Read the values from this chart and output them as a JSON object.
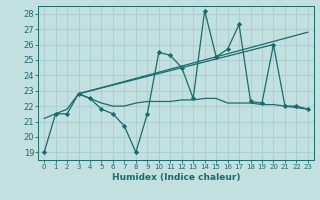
{
  "xlabel": "Humidex (Indice chaleur)",
  "bg_color": "#c2e0e0",
  "grid_color": "#aacccc",
  "line_color": "#1a6b6b",
  "xlim": [
    -0.5,
    23.5
  ],
  "ylim": [
    18.5,
    28.5
  ],
  "xticks": [
    0,
    1,
    2,
    3,
    4,
    5,
    6,
    7,
    8,
    9,
    10,
    11,
    12,
    13,
    14,
    15,
    16,
    17,
    18,
    19,
    20,
    21,
    22,
    23
  ],
  "yticks": [
    19,
    20,
    21,
    22,
    23,
    24,
    25,
    26,
    27,
    28
  ],
  "series1": [
    19.0,
    21.5,
    21.5,
    22.8,
    22.5,
    21.8,
    21.5,
    20.7,
    19.0,
    21.5,
    25.5,
    25.3,
    24.5,
    22.5,
    28.2,
    25.2,
    25.7,
    27.3,
    22.3,
    22.2,
    26.0,
    22.0,
    22.0,
    21.8
  ],
  "series2": [
    21.2,
    21.5,
    21.8,
    22.8,
    22.5,
    22.2,
    22.0,
    22.0,
    22.2,
    22.3,
    22.3,
    22.3,
    22.4,
    22.4,
    22.5,
    22.5,
    22.2,
    22.2,
    22.2,
    22.1,
    22.1,
    22.0,
    21.9,
    21.8
  ],
  "trend1_x": [
    3,
    23
  ],
  "trend1_y": [
    22.8,
    26.8
  ],
  "trend2_x": [
    3,
    20
  ],
  "trend2_y": [
    22.8,
    26.0
  ]
}
